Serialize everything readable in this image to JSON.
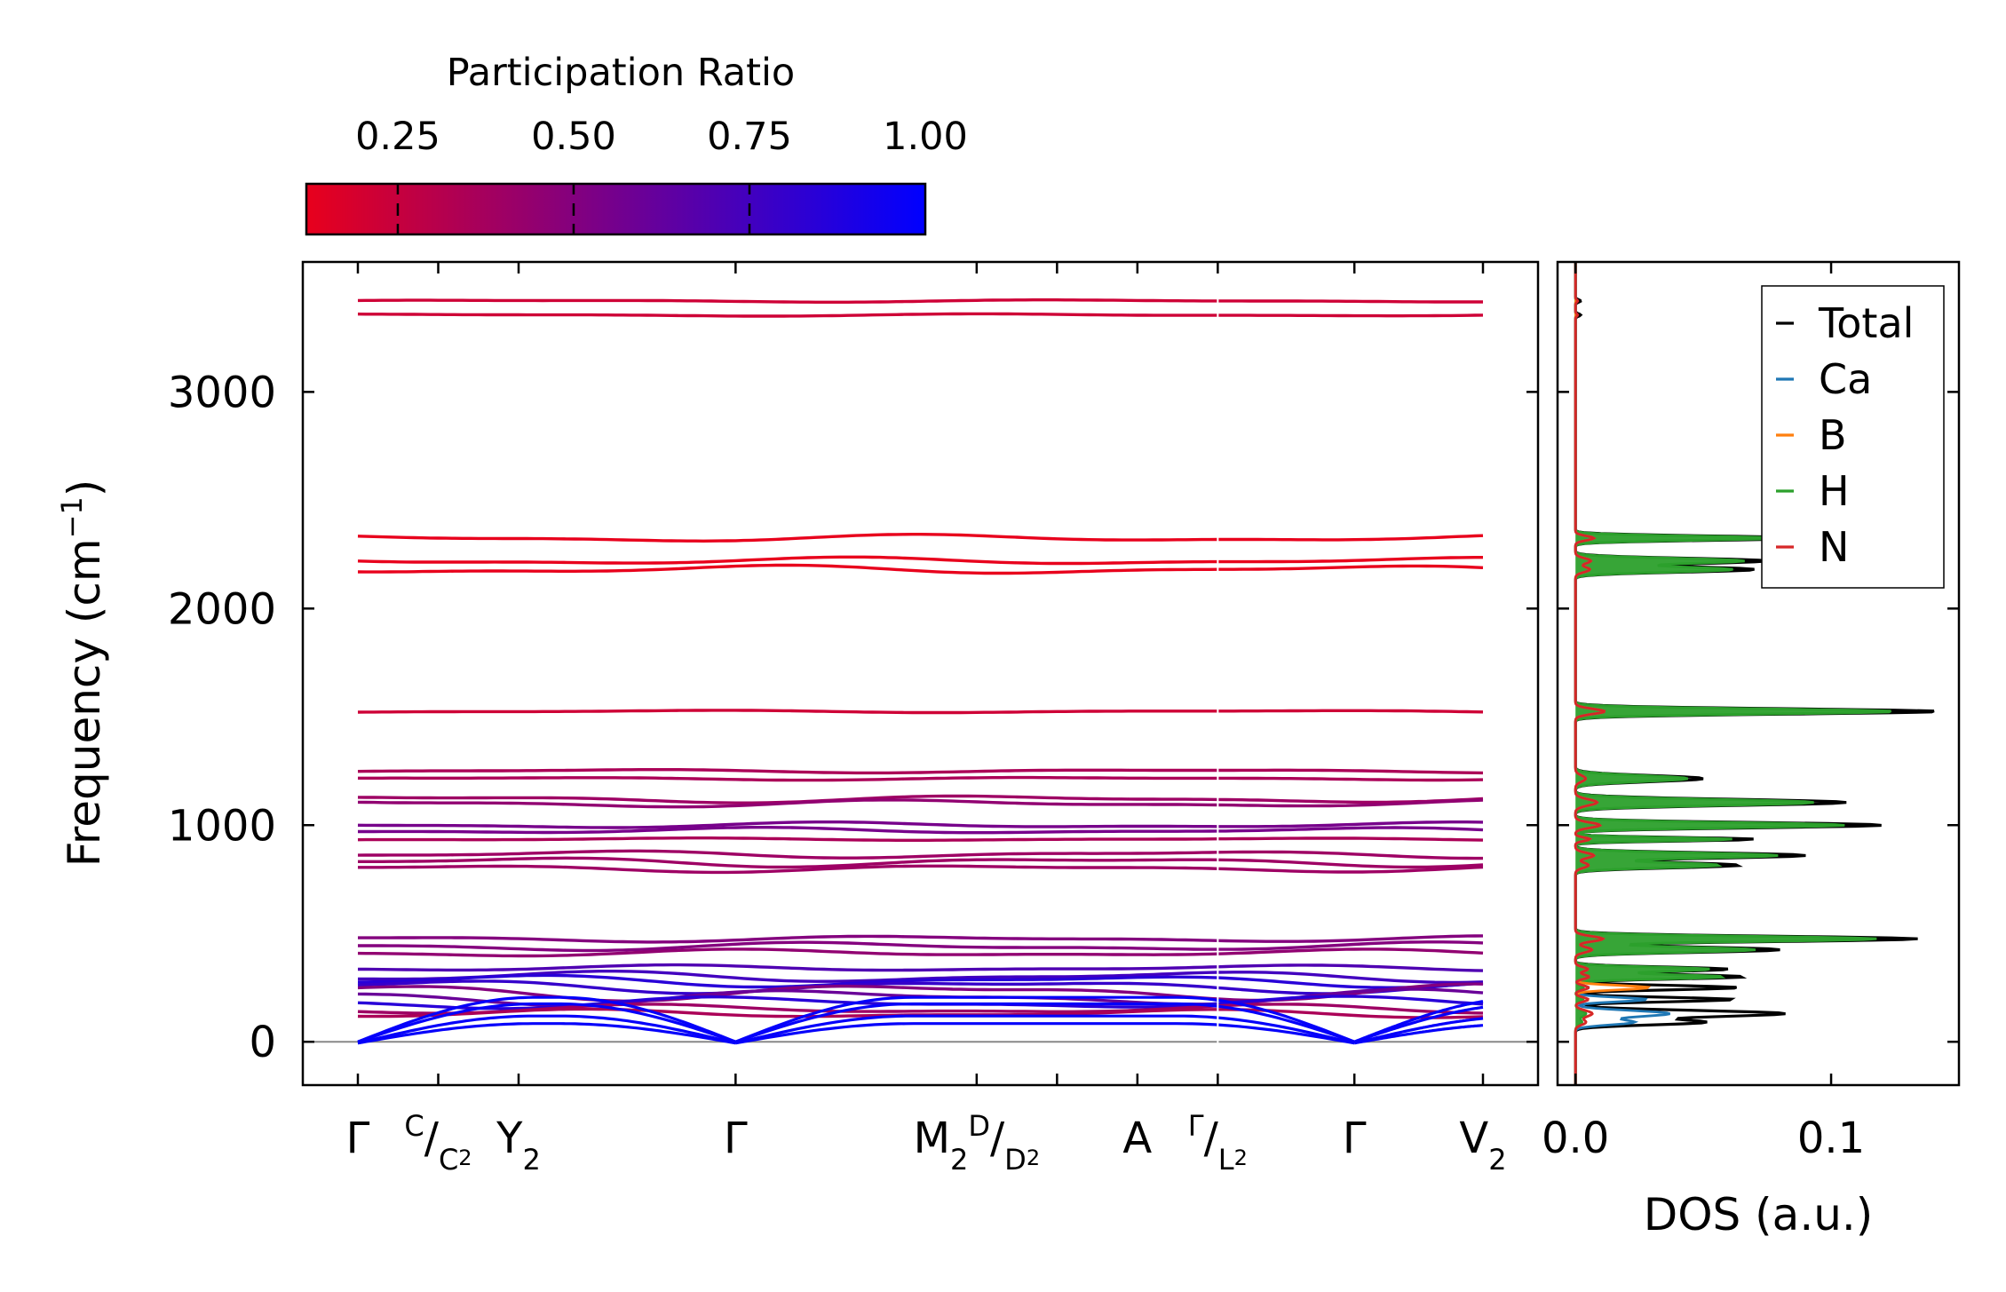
{
  "chart_data": [
    {
      "type": "line",
      "title": "",
      "subtype": "phonon band structure",
      "xlabel": "",
      "ylabel_main": "Frequency (cm",
      "ylabel_sup": "−1",
      "ylabel_close": ")",
      "ylim": [
        -200,
        3600
      ],
      "yticks": [
        0,
        1000,
        2000,
        3000
      ],
      "ytick_labels": [
        "0",
        "1000",
        "2000",
        "3000"
      ],
      "zero_line": 0,
      "path_length": 7.0,
      "path_ticks": [
        0.0,
        0.5,
        1.0,
        2.35,
        3.85,
        4.35,
        4.85,
        5.35,
        6.2,
        7.0
      ],
      "path_labels": [
        {
          "pos": 0.0,
          "parts": [
            {
              "t": "Γ"
            }
          ]
        },
        {
          "pos": 0.5,
          "parts": [
            {
              "t": "C",
              "s": "sup"
            },
            {
              "t": "/"
            },
            {
              "t": "C",
              "s": "sub"
            },
            {
              "t": "2",
              "s": "subsub"
            }
          ]
        },
        {
          "pos": 1.0,
          "parts": [
            {
              "t": "Y"
            },
            {
              "t": "2",
              "s": "sub"
            }
          ]
        },
        {
          "pos": 2.35,
          "parts": [
            {
              "t": "Γ"
            }
          ]
        },
        {
          "pos": 3.85,
          "parts": [
            {
              "t": "M"
            },
            {
              "t": "2",
              "s": "sub"
            },
            {
              "t": "D",
              "s": "sup"
            },
            {
              "t": "/"
            },
            {
              "t": "D",
              "s": "sub"
            },
            {
              "t": "2",
              "s": "subsub"
            }
          ]
        },
        {
          "pos": 4.85,
          "parts": [
            {
              "t": "A"
            }
          ]
        },
        {
          "pos": 5.35,
          "parts": [
            {
              "t": "Γ",
              "s": "sup"
            },
            {
              "t": "/"
            },
            {
              "t": "L",
              "s": "sub"
            },
            {
              "t": "2",
              "s": "subsub"
            }
          ]
        },
        {
          "pos": 6.2,
          "parts": [
            {
              "t": "Γ"
            }
          ]
        },
        {
          "pos": 7.0,
          "parts": [
            {
              "t": "V"
            },
            {
              "t": "2",
              "s": "sub"
            }
          ]
        }
      ],
      "colorbar": {
        "label": "Participation Ratio",
        "cmap": [
          "#e8001c",
          "#0000ff"
        ],
        "vmin": 0.12,
        "vmax": 1.0,
        "ticks": [
          0.25,
          0.5,
          0.75,
          1.0
        ],
        "tick_labels": [
          "0.25",
          "0.50",
          "0.75",
          "1.00"
        ]
      },
      "bands": [
        {
          "freq": 3420,
          "amp": 4,
          "pr": 0.22
        },
        {
          "freq": 3355,
          "amp": 4,
          "pr": 0.22
        },
        {
          "freq": 2325,
          "amp": 12,
          "pr": 0.12
        },
        {
          "freq": 2220,
          "amp": 12,
          "pr": 0.12
        },
        {
          "freq": 2180,
          "amp": 14,
          "pr": 0.12
        },
        {
          "freq": 1525,
          "amp": 4,
          "pr": 0.22
        },
        {
          "freq": 1250,
          "amp": 6,
          "pr": 0.35
        },
        {
          "freq": 1215,
          "amp": 5,
          "pr": 0.35
        },
        {
          "freq": 1120,
          "amp": 12,
          "pr": 0.4
        },
        {
          "freq": 1100,
          "amp": 12,
          "pr": 0.45
        },
        {
          "freq": 1000,
          "amp": 10,
          "pr": 0.55
        },
        {
          "freq": 975,
          "amp": 10,
          "pr": 0.55
        },
        {
          "freq": 935,
          "amp": 4,
          "pr": 0.35
        },
        {
          "freq": 865,
          "amp": 12,
          "pr": 0.4
        },
        {
          "freq": 830,
          "amp": 16,
          "pr": 0.4
        },
        {
          "freq": 800,
          "amp": 12,
          "pr": 0.4
        },
        {
          "freq": 475,
          "amp": 10,
          "pr": 0.5
        },
        {
          "freq": 440,
          "amp": 14,
          "pr": 0.5
        },
        {
          "freq": 410,
          "amp": 12,
          "pr": 0.45
        },
        {
          "freq": 340,
          "amp": 10,
          "pr": 0.7
        },
        {
          "freq": 300,
          "amp": 18,
          "pr": 0.75
        },
        {
          "freq": 280,
          "amp": 20,
          "pr": 0.85
        },
        {
          "freq": 255,
          "amp": 22,
          "pr": 0.8
        },
        {
          "freq": 230,
          "amp": 28,
          "pr": 0.5
        },
        {
          "freq": 205,
          "amp": 26,
          "pr": 0.6
        },
        {
          "freq": 180,
          "amp": 20,
          "pr": 0.85
        },
        {
          "freq": 150,
          "amp": 16,
          "pr": 0.4
        },
        {
          "freq": 130,
          "amp": 14,
          "pr": 0.35
        }
      ],
      "acoustic": {
        "gamma_points": [
          0.0,
          2.35,
          6.2
        ],
        "branch_max_freq": [
          90,
          125,
          175,
          205
        ],
        "pr": 0.98
      }
    },
    {
      "type": "line",
      "subtype": "density of states",
      "xlabel": "DOS (a.u.)",
      "xlim": [
        -0.007,
        0.15
      ],
      "xticks": [
        0.0,
        0.1
      ],
      "xtick_labels": [
        "0.0",
        "0.1"
      ],
      "ylim": [
        -200,
        3600
      ],
      "legend_position": "upper-right",
      "series": [
        {
          "name": "Total",
          "color": "#000000"
        },
        {
          "name": "Ca",
          "color": "#1f77b4"
        },
        {
          "name": "B",
          "color": "#ff7f0e"
        },
        {
          "name": "H",
          "color": "#2ca02c"
        },
        {
          "name": "N",
          "color": "#d62728"
        }
      ],
      "peaks": [
        {
          "f": 3420,
          "h": 0.002,
          "w": 6,
          "s": "N"
        },
        {
          "f": 3355,
          "h": 0.002,
          "w": 6,
          "s": "N"
        },
        {
          "f": 2325,
          "h": 0.09,
          "w": 10,
          "s": "H"
        },
        {
          "f": 2220,
          "h": 0.075,
          "w": 12,
          "s": "H"
        },
        {
          "f": 2180,
          "h": 0.07,
          "w": 12,
          "s": "H"
        },
        {
          "f": 1525,
          "h": 0.142,
          "w": 12,
          "s": "H"
        },
        {
          "f": 1215,
          "h": 0.05,
          "w": 14,
          "s": "H"
        },
        {
          "f": 1105,
          "h": 0.106,
          "w": 14,
          "s": "H"
        },
        {
          "f": 1000,
          "h": 0.12,
          "w": 12,
          "s": "H"
        },
        {
          "f": 935,
          "h": 0.07,
          "w": 8,
          "s": "H"
        },
        {
          "f": 860,
          "h": 0.09,
          "w": 12,
          "s": "H"
        },
        {
          "f": 815,
          "h": 0.064,
          "w": 12,
          "s": "H"
        },
        {
          "f": 475,
          "h": 0.134,
          "w": 12,
          "s": "H"
        },
        {
          "f": 425,
          "h": 0.08,
          "w": 12,
          "s": "H"
        },
        {
          "f": 335,
          "h": 0.06,
          "w": 10,
          "s": "H"
        },
        {
          "f": 300,
          "h": 0.066,
          "w": 10,
          "s": "H"
        },
        {
          "f": 250,
          "h": 0.064,
          "w": 10,
          "s": "B"
        },
        {
          "f": 195,
          "h": 0.062,
          "w": 10,
          "s": "Ca"
        },
        {
          "f": 130,
          "h": 0.082,
          "w": 14,
          "s": "Ca"
        },
        {
          "f": 90,
          "h": 0.05,
          "w": 12,
          "s": "Ca"
        }
      ]
    }
  ]
}
